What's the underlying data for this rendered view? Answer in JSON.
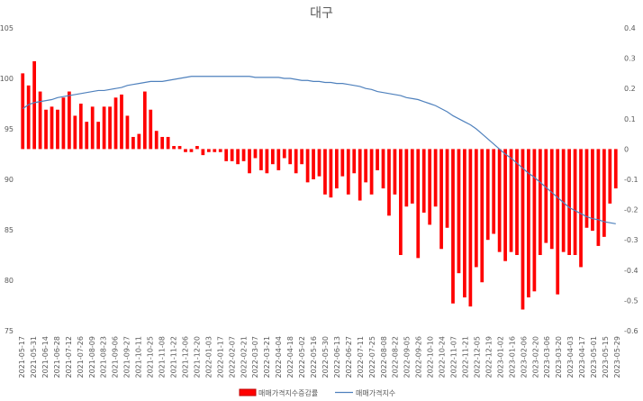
{
  "chart_data": {
    "type": "bar+line",
    "title": "대구",
    "legend": {
      "placement": "bottom",
      "entries": [
        "매매가격지수증감률",
        "매매가격지수"
      ]
    },
    "left_axis": {
      "min": 75,
      "max": 105,
      "step": 5,
      "ticks": [
        "75",
        "80",
        "85",
        "90",
        "95",
        "100",
        "105"
      ]
    },
    "right_axis": {
      "min": -0.6,
      "max": 0.4,
      "step": 0.1,
      "ticks": [
        "-0.6",
        "-0.5",
        "-0.4",
        "-0.3",
        "-0.2",
        "-0.1",
        "0",
        "0.1",
        "0.2",
        "0.3",
        "0.4"
      ]
    },
    "x_tick_labels": [
      "2021-05-17",
      "2021-05-31",
      "2021-06-14",
      "2021-06-28",
      "2021-07-12",
      "2021-07-26",
      "2021-08-09",
      "2021-08-23",
      "2021-09-06",
      "2021-09-27",
      "2021-10-11",
      "2021-10-25",
      "2021-11-08",
      "2021-11-22",
      "2021-12-06",
      "2021-12-20",
      "2022-01-03",
      "2022-01-17",
      "2022-02-07",
      "2022-02-21",
      "2022-03-07",
      "2022-03-21",
      "2022-04-04",
      "2022-04-18",
      "2022-05-02",
      "2022-05-16",
      "2022-05-30",
      "2022-06-13",
      "2022-06-27",
      "2022-07-11",
      "2022-07-25",
      "2022-08-08",
      "2022-08-22",
      "2022-09-05",
      "2022-09-26",
      "2022-10-10",
      "2022-10-24",
      "2022-11-07",
      "2022-11-21",
      "2022-12-05",
      "2022-12-19",
      "2023-01-02",
      "2023-01-16",
      "2023-02-06",
      "2023-02-20",
      "2023-03-06",
      "2023-03-20",
      "2023-04-03",
      "2023-04-17",
      "2023-05-01",
      "2023-05-15",
      "2023-05-29"
    ],
    "series": [
      {
        "name": "매매가격지수증감률",
        "type": "bar",
        "axis": "right",
        "color": "#ff0000",
        "values": [
          0.25,
          0.21,
          0.29,
          0.19,
          0.13,
          0.14,
          0.13,
          0.17,
          0.19,
          0.11,
          0.15,
          0.09,
          0.14,
          0.09,
          0.14,
          0.14,
          0.17,
          0.18,
          0.11,
          0.04,
          0.05,
          0.19,
          0.13,
          0.06,
          0.04,
          0.04,
          0.01,
          0.01,
          -0.01,
          -0.01,
          0.01,
          -0.02,
          -0.01,
          -0.01,
          -0.01,
          -0.04,
          -0.04,
          -0.05,
          -0.04,
          -0.08,
          -0.03,
          -0.07,
          -0.08,
          -0.05,
          -0.07,
          -0.03,
          -0.05,
          -0.08,
          -0.05,
          -0.11,
          -0.1,
          -0.09,
          -0.15,
          -0.16,
          -0.13,
          -0.09,
          -0.15,
          -0.08,
          -0.17,
          -0.11,
          -0.15,
          -0.07,
          -0.13,
          -0.22,
          -0.15,
          -0.35,
          -0.19,
          -0.18,
          -0.36,
          -0.21,
          -0.25,
          -0.19,
          -0.33,
          -0.26,
          -0.51,
          -0.41,
          -0.49,
          -0.52,
          -0.39,
          -0.44,
          -0.3,
          -0.28,
          -0.34,
          -0.37,
          -0.34,
          -0.35,
          -0.53,
          -0.49,
          -0.47,
          -0.35,
          -0.31,
          -0.33,
          -0.48,
          -0.34,
          -0.35,
          -0.35,
          -0.39,
          -0.26,
          -0.27,
          -0.32,
          -0.29,
          -0.18,
          -0.13
        ]
      },
      {
        "name": "매매가격지수",
        "type": "line",
        "axis": "left",
        "color": "#4f81bd",
        "values": [
          97.0,
          97.4,
          97.6,
          97.7,
          97.8,
          97.9,
          98.1,
          98.2,
          98.3,
          98.4,
          98.5,
          98.6,
          98.7,
          98.8,
          98.8,
          98.9,
          99.0,
          99.1,
          99.3,
          99.4,
          99.5,
          99.6,
          99.7,
          99.7,
          99.7,
          99.8,
          99.9,
          100.0,
          100.1,
          100.2,
          100.2,
          100.2,
          100.2,
          100.2,
          100.2,
          100.2,
          100.2,
          100.2,
          100.2,
          100.2,
          100.1,
          100.1,
          100.1,
          100.1,
          100.1,
          100.0,
          100.0,
          99.9,
          99.8,
          99.8,
          99.7,
          99.7,
          99.6,
          99.6,
          99.5,
          99.5,
          99.4,
          99.3,
          99.2,
          99.0,
          98.9,
          98.7,
          98.6,
          98.5,
          98.4,
          98.3,
          98.1,
          98.0,
          97.9,
          97.7,
          97.5,
          97.3,
          97.0,
          96.7,
          96.3,
          96.0,
          95.7,
          95.4,
          95.0,
          94.5,
          94.0,
          93.5,
          93.0,
          92.5,
          92.1,
          91.6,
          91.1,
          90.6,
          90.2,
          89.7,
          89.2,
          88.7,
          88.2,
          87.7,
          87.2,
          86.9,
          86.6,
          86.3,
          86.1,
          86.0,
          85.8,
          85.7,
          85.6
        ]
      }
    ]
  }
}
